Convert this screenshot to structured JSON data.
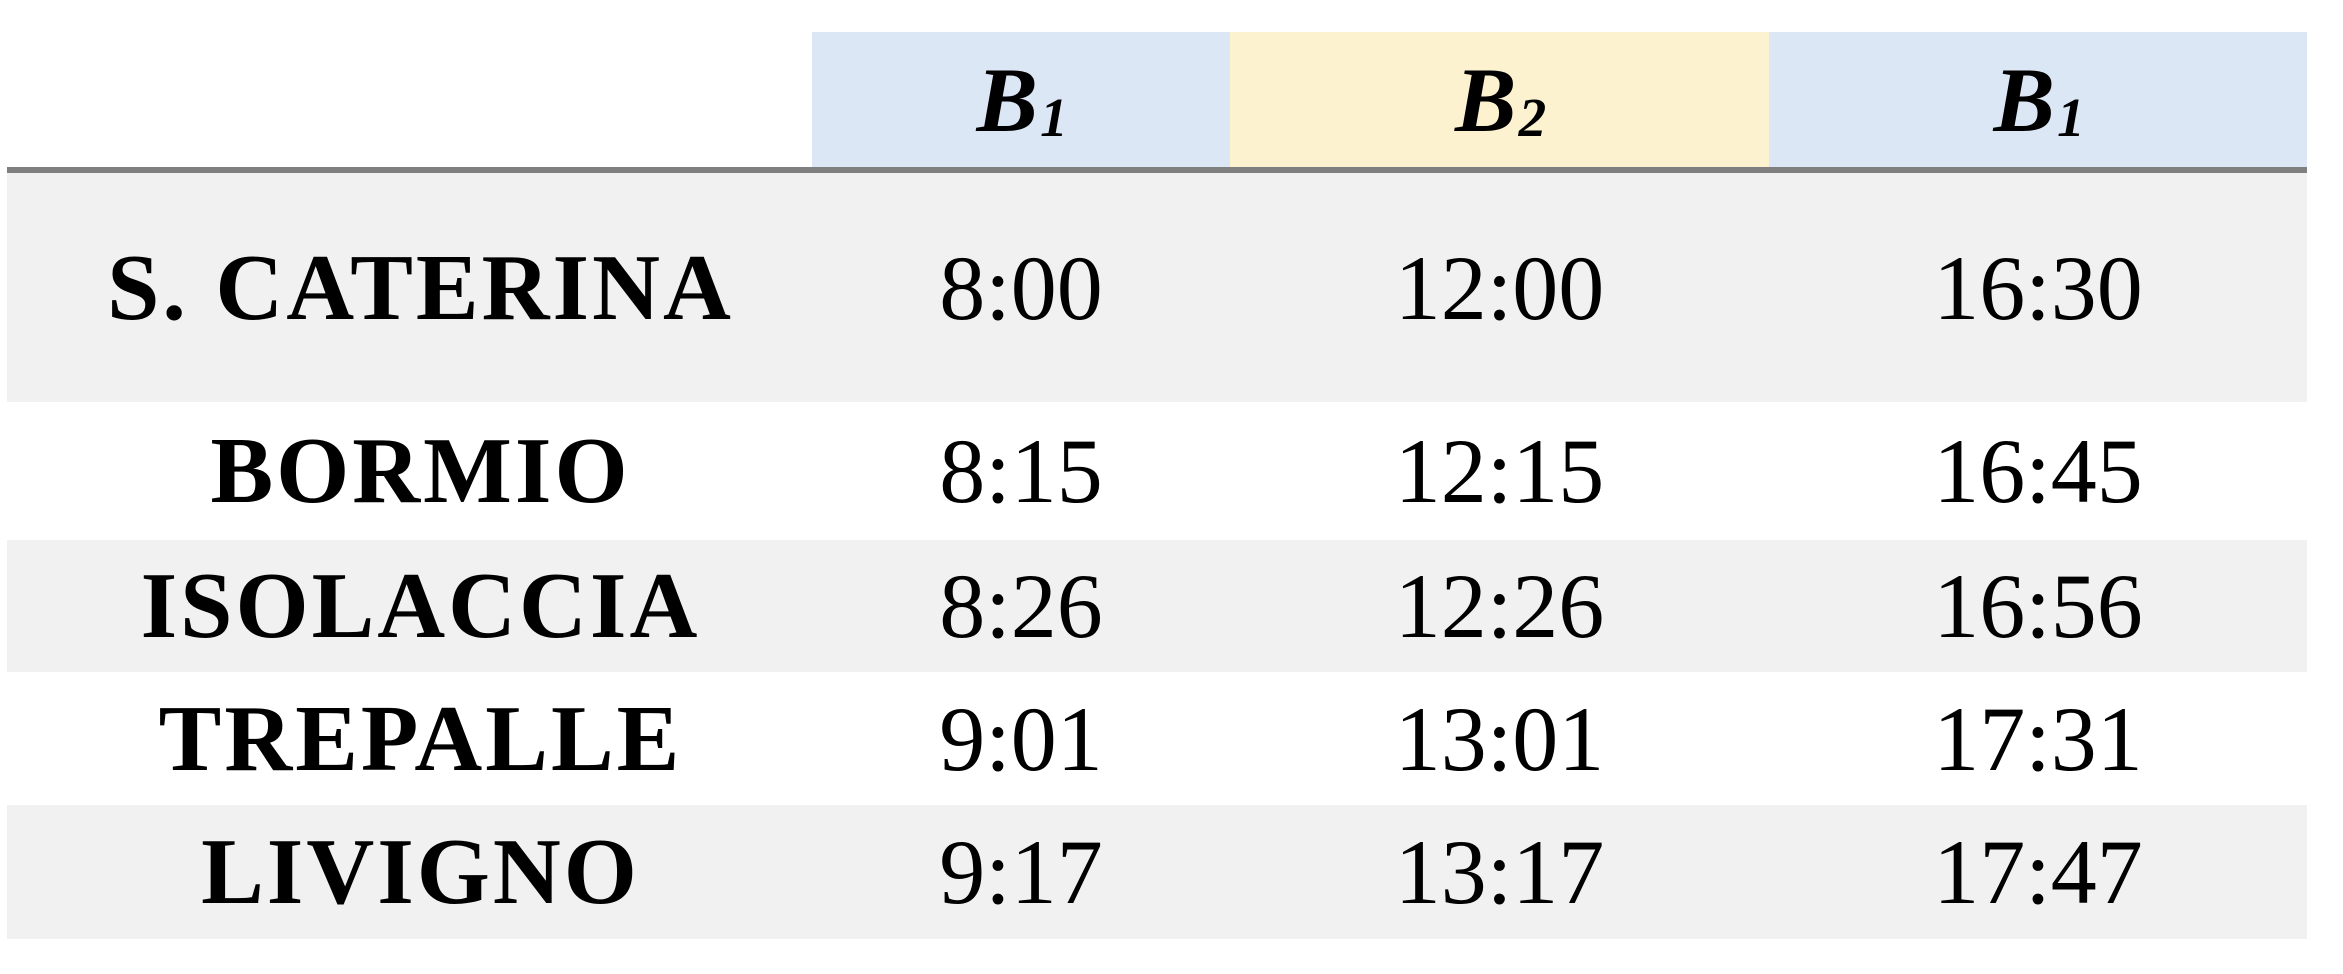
{
  "table": {
    "header": {
      "cols": [
        {
          "base": "B",
          "sub": "1"
        },
        {
          "base": "B",
          "sub": "2"
        },
        {
          "base": "B",
          "sub": "1"
        }
      ]
    },
    "rows": [
      {
        "station": "S. CATERINA",
        "times": [
          "8:00",
          "12:00",
          "16:30"
        ]
      },
      {
        "station": "BORMIO",
        "times": [
          "8:15",
          "12:15",
          "16:45"
        ]
      },
      {
        "station": "ISOLACCIA",
        "times": [
          "8:26",
          "12:26",
          "16:56"
        ]
      },
      {
        "station": "TREPALLE",
        "times": [
          "9:01",
          "13:01",
          "17:31"
        ]
      },
      {
        "station": "LIVIGNO",
        "times": [
          "9:17",
          "13:17",
          "17:47"
        ]
      }
    ]
  },
  "colors": {
    "header_blue": "#dbe7f4",
    "header_yellow": "#fdf2cf",
    "row_shade": "#f1f1f2",
    "row_plain": "#ffffff",
    "grid_line": "#7f7f7f",
    "text": "#000000"
  }
}
